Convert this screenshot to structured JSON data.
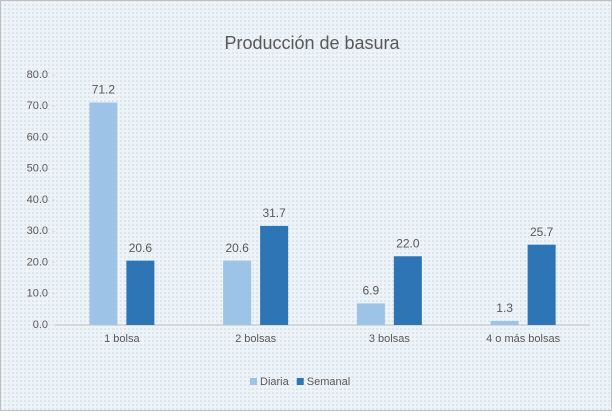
{
  "chart_data": {
    "type": "bar",
    "title": "Producción de basura",
    "categories": [
      "1 bolsa",
      "2 bolsas",
      "3 bolsas",
      "4 o más bolsas"
    ],
    "series": [
      {
        "name": "Diaria",
        "color": "#9dc3e6",
        "values": [
          71.2,
          20.6,
          6.9,
          1.3
        ],
        "value_labels": [
          "71.2",
          "20.6",
          "6.9",
          "1.3"
        ]
      },
      {
        "name": "Semanal",
        "color": "#2e75b6",
        "values": [
          20.6,
          31.7,
          22.0,
          25.7
        ],
        "value_labels": [
          "20.6",
          "31.7",
          "22.0",
          "25.7"
        ]
      }
    ],
    "ylim": [
      0,
      80
    ],
    "yticks": [
      {
        "value": 0,
        "label": "0.0"
      },
      {
        "value": 10,
        "label": "10.0"
      },
      {
        "value": 20,
        "label": "20.0"
      },
      {
        "value": 30,
        "label": "30.0"
      },
      {
        "value": 40,
        "label": "40.0"
      },
      {
        "value": 50,
        "label": "50.0"
      },
      {
        "value": 60,
        "label": "60.0"
      },
      {
        "value": 70,
        "label": "70.0"
      },
      {
        "value": 80,
        "label": "80.0"
      }
    ],
    "grid": false,
    "legend": "bottom"
  }
}
